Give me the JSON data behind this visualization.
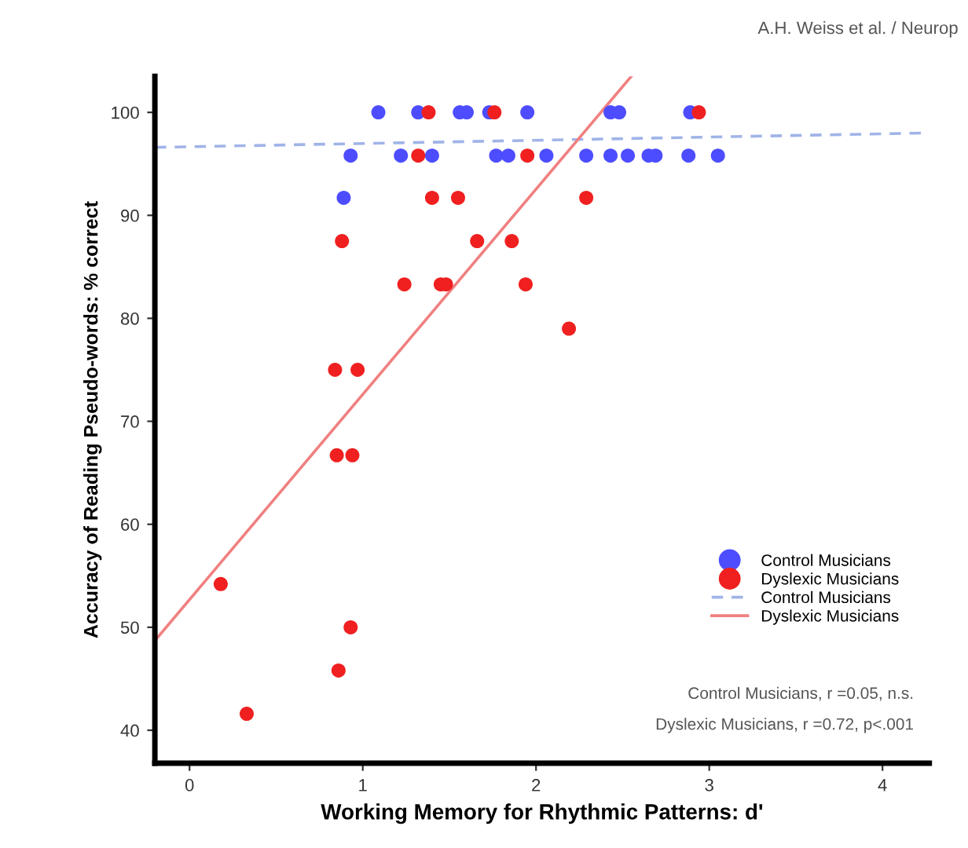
{
  "chart_data": {
    "type": "scatter",
    "xlabel": "Working Memory for Rhythmic Patterns: d'",
    "ylabel": "Accuracy of Reading Pseudo-words: % correct",
    "xlim": [
      -0.2,
      4.27
    ],
    "ylim": [
      36.8,
      103.5
    ],
    "xticks": [
      0,
      1,
      2,
      3,
      4
    ],
    "yticks": [
      40,
      50,
      60,
      70,
      80,
      90,
      100
    ],
    "grid": false,
    "legend": "bottom right",
    "marker": "circle",
    "series": [
      {
        "name": "Control Musicians",
        "color": "#4d4dff",
        "x": [
          1.09,
          1.32,
          1.56,
          1.6,
          1.73,
          1.95,
          2.43,
          2.48,
          2.89,
          0.93,
          1.22,
          1.4,
          1.77,
          1.84,
          2.06,
          2.29,
          2.43,
          2.53,
          2.65,
          2.69,
          2.88,
          3.05,
          0.89
        ],
        "values": [
          100,
          100,
          100,
          100,
          100,
          100,
          100,
          100,
          100,
          95.8,
          95.8,
          95.8,
          95.8,
          95.8,
          95.8,
          95.8,
          95.8,
          95.8,
          95.8,
          95.8,
          95.8,
          95.8,
          91.7
        ]
      },
      {
        "name": "Dyslexic Musicians",
        "color": "#f02020",
        "x": [
          1.38,
          1.76,
          2.94,
          1.32,
          1.95,
          1.4,
          1.55,
          2.29,
          0.88,
          1.66,
          1.86,
          1.24,
          1.45,
          1.48,
          1.94,
          2.19,
          0.84,
          0.97,
          0.85,
          0.94,
          0.18,
          0.93,
          0.86,
          0.33
        ],
        "values": [
          100,
          100,
          100,
          95.8,
          95.8,
          91.7,
          91.7,
          91.7,
          87.5,
          87.5,
          87.5,
          83.3,
          83.3,
          83.3,
          83.3,
          79,
          75,
          75,
          66.7,
          66.7,
          54.2,
          50,
          45.8,
          41.6
        ]
      },
      {
        "name": "Control Musicians",
        "type": "line",
        "line_style": "dashed",
        "marker": "none",
        "color": "#a0b4e8",
        "x": [
          -0.2,
          4.27
        ],
        "values": [
          96.6,
          98.0
        ]
      },
      {
        "name": "Dyslexic Musicians",
        "type": "line",
        "line_style": "solid",
        "marker": "none",
        "color": "#f08080",
        "x": [
          -0.2,
          2.55
        ],
        "values": [
          48.7,
          103.5
        ]
      }
    ],
    "annotations": [
      "Control Musicians, r =0.05, n.s.",
      "Dyslexic Musicians, r =0.72, p<.001",
      "A.H. Weiss et al. / Neurop"
    ]
  }
}
